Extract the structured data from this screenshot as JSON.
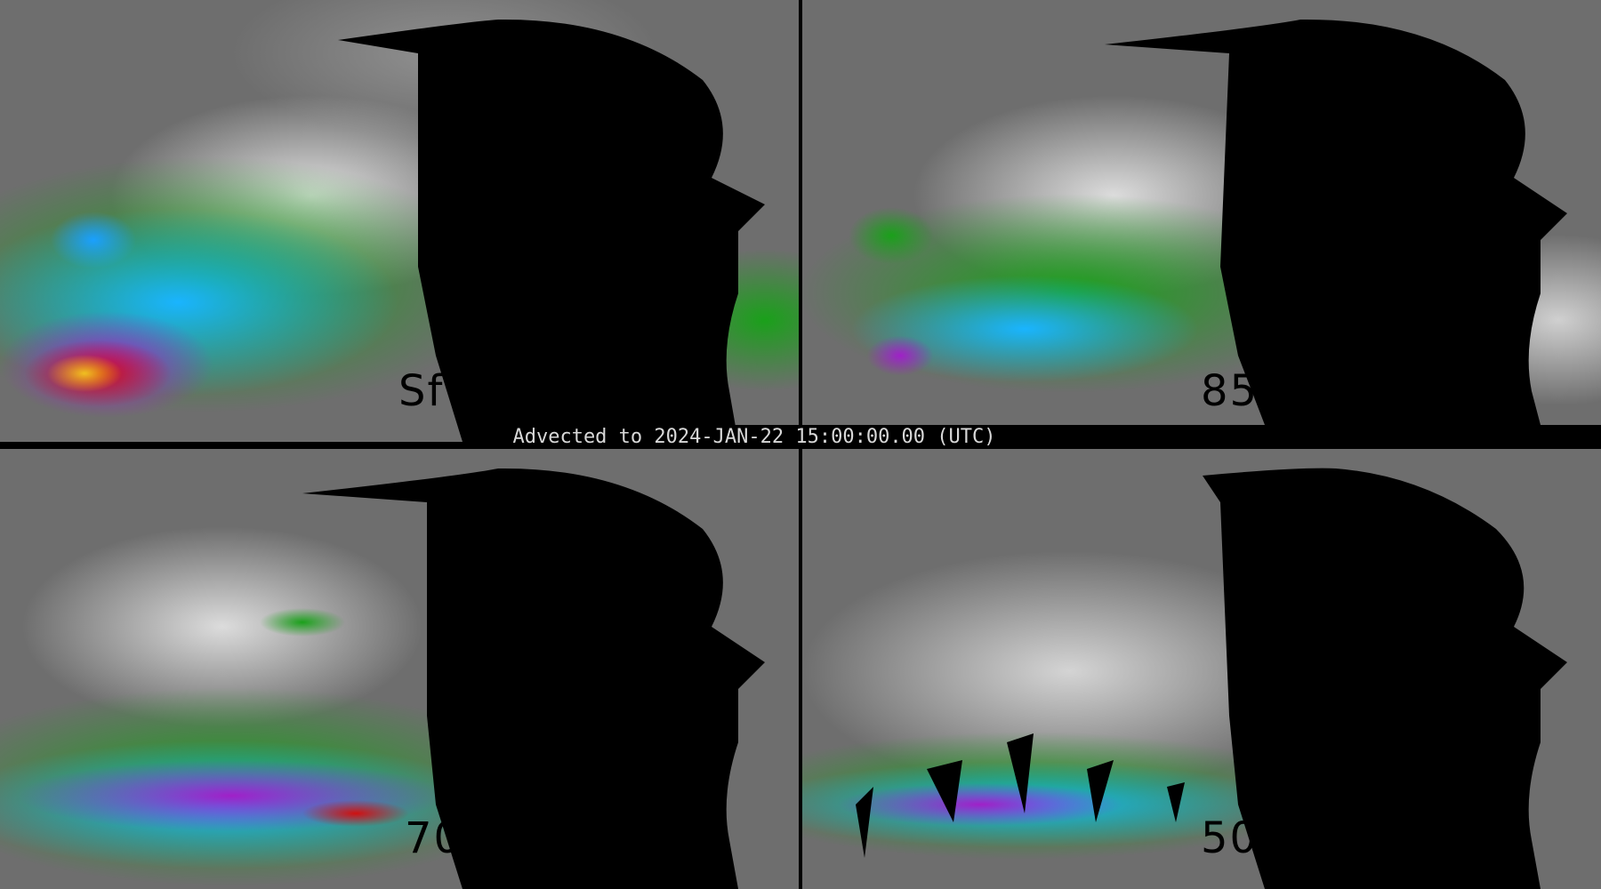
{
  "title": "Advected to 2024-JAN-22 15:00:00.00 (UTC)",
  "panels": [
    {
      "level_label": "Sf"
    },
    {
      "level_label": "85"
    },
    {
      "level_label": "70"
    },
    {
      "level_label": "50"
    }
  ],
  "colors": {
    "background": "#000000",
    "base_gray": "#6e6e6e",
    "green": "#1aa01a",
    "cyan": "#1ab4ff",
    "blue": "#1a5aff",
    "purple": "#a020c8",
    "red": "#d01010",
    "yellow": "#f0d020"
  }
}
